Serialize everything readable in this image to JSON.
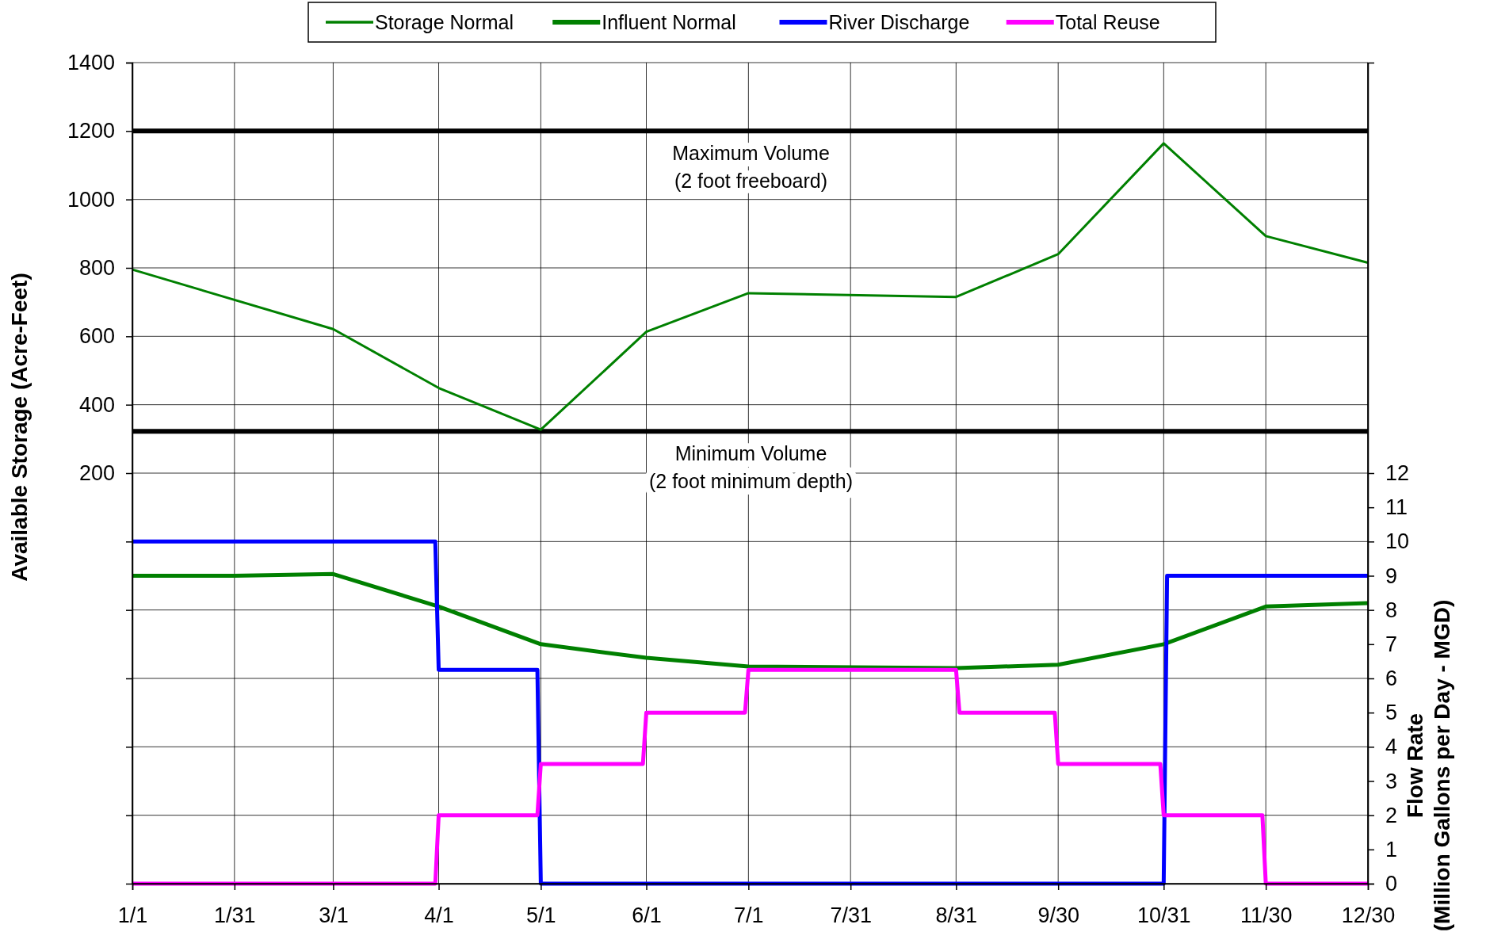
{
  "chart_data": {
    "type": "line",
    "ylabel": "Available Storage (Acre-Feet)",
    "y2label": "Flow Rate\n(Million Gallons per Day - MGD)",
    "xlim": [
      "--01-01",
      "--12-30"
    ],
    "xticks": [
      {
        "value": "--01-01",
        "label": "1/1"
      },
      {
        "value": "--01-31",
        "label": "1/31"
      },
      {
        "value": "--03-01",
        "label": "3/1"
      },
      {
        "value": "--04-01",
        "label": "4/1"
      },
      {
        "value": "--05-01",
        "label": "5/1"
      },
      {
        "value": "--06-01",
        "label": "6/1"
      },
      {
        "value": "--07-01",
        "label": "7/1"
      },
      {
        "value": "--07-31",
        "label": "7/31"
      },
      {
        "value": "--08-31",
        "label": "8/31"
      },
      {
        "value": "--09-30",
        "label": "9/30"
      },
      {
        "value": "--10-31",
        "label": "10/31"
      },
      {
        "value": "--11-30",
        "label": "11/30"
      },
      {
        "value": "--12-30",
        "label": "12/30"
      }
    ],
    "ylim": [
      -1000,
      1400
    ],
    "yticks": [
      {
        "value": -800,
        "label": null
      },
      {
        "value": -600,
        "label": null
      },
      {
        "value": -400,
        "label": null
      },
      {
        "value": -200,
        "label": null
      },
      {
        "value": 0,
        "label": null
      },
      200,
      400,
      600,
      800,
      1000,
      1200,
      1400
    ],
    "y2lim": [
      0,
      24
    ],
    "y2ticks": [
      0,
      1,
      2,
      3,
      4,
      5,
      6,
      7,
      8,
      9,
      10,
      11,
      12
    ],
    "grid": true,
    "legend": "top",
    "line_style": "solid",
    "ref_lines": [
      {
        "axis": "y",
        "value": 1200,
        "label": "Maximum Volume\n(2 foot freeboard)",
        "color": "#000000"
      },
      {
        "axis": "y",
        "value": 322,
        "label": "Minimum Volume\n(2 foot minimum depth)",
        "color": "#000000"
      }
    ],
    "series": [
      {
        "name": "Storage Normal",
        "color": "#008000",
        "x": [
          "--01-01",
          "--03-01",
          "--04-01",
          "--05-01",
          "--06-01",
          "--07-01",
          "--08-31",
          "--09-30",
          "--10-31",
          "--11-30",
          "--12-30"
        ],
        "values": [
          795,
          621,
          449,
          327,
          613,
          726,
          715,
          840,
          1164,
          893,
          815
        ]
      },
      {
        "name": "Influent Normal",
        "color": "#008000",
        "axis": "y2",
        "x": [
          "--01-01",
          "--01-31",
          "--03-01",
          "--04-01",
          "--05-01",
          "--06-01",
          "--07-01",
          "--08-31",
          "--09-30",
          "--10-31",
          "--11-30",
          "--12-30"
        ],
        "values": [
          9.0,
          9.0,
          9.05,
          8.1,
          7.0,
          6.6,
          6.35,
          6.3,
          6.4,
          7.0,
          8.1,
          8.2
        ]
      },
      {
        "name": "River Discharge",
        "color": "#0000ff",
        "axis": "y2",
        "x": [
          "--01-01",
          "--03-31",
          "--04-01",
          "--04-30",
          "--05-01",
          "--10-31",
          "--11-01",
          "--12-30"
        ],
        "values": [
          10,
          10,
          6.25,
          6.25,
          0,
          0,
          9,
          9
        ]
      },
      {
        "name": "Total Reuse",
        "color": "#ff00ff",
        "axis": "y2",
        "x": [
          "--01-01",
          "--03-31",
          "--04-01",
          "--04-30",
          "--05-01",
          "--05-31",
          "--06-01",
          "--06-30",
          "--07-01",
          "--08-31",
          "--09-01",
          "--09-29",
          "--09-30",
          "--10-30",
          "--10-31",
          "--11-29",
          "--11-30",
          "--12-30"
        ],
        "values": [
          0,
          0,
          2,
          2,
          3.5,
          3.5,
          5,
          5,
          6.25,
          6.25,
          5,
          5,
          3.5,
          3.5,
          2,
          2,
          0,
          0
        ]
      }
    ]
  }
}
